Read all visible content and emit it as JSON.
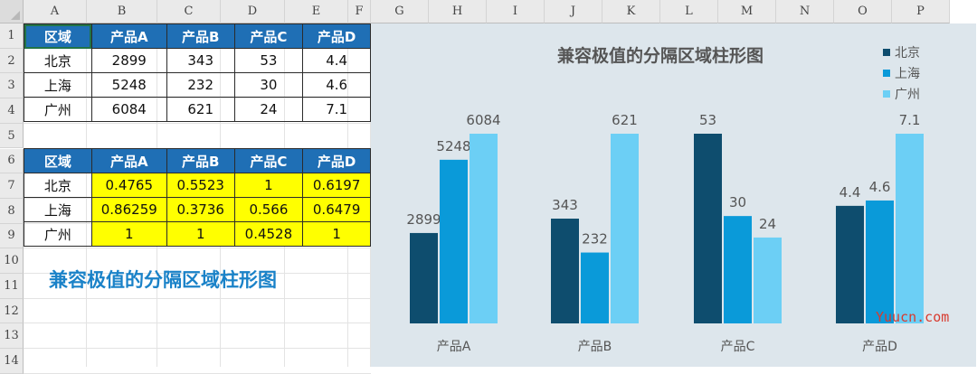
{
  "columns": [
    "A",
    "B",
    "C",
    "D",
    "E",
    "F",
    "G",
    "H",
    "I",
    "J",
    "K",
    "L",
    "M",
    "N",
    "O",
    "P"
  ],
  "rows": [
    "1",
    "2",
    "3",
    "4",
    "5",
    "6",
    "7",
    "8",
    "9",
    "10",
    "11",
    "12",
    "13",
    "14"
  ],
  "table1": {
    "header": [
      "区域",
      "产品A",
      "产品B",
      "产品C",
      "产品D"
    ],
    "rows": [
      [
        "北京",
        "2899",
        "343",
        "53",
        "4.4"
      ],
      [
        "上海",
        "5248",
        "232",
        "30",
        "4.6"
      ],
      [
        "广州",
        "6084",
        "621",
        "24",
        "7.1"
      ]
    ]
  },
  "table2": {
    "header": [
      "区域",
      "产品A",
      "产品B",
      "产品C",
      "产品D"
    ],
    "rows": [
      [
        "北京",
        "0.4765",
        "0.5523",
        "1",
        "0.6197"
      ],
      [
        "上海",
        "0.86259",
        "0.3736",
        "0.566",
        "0.6479"
      ],
      [
        "广州",
        "1",
        "1",
        "0.4528",
        "1"
      ]
    ]
  },
  "sheet_title": "兼容极值的分隔区域柱形图",
  "watermark": "Yuucn.com",
  "colors": {
    "header_blue": "#1f6fb5",
    "highlight_yellow": "#ffff00",
    "title_blue": "#1a82c8"
  },
  "chart_data": {
    "type": "bar",
    "title": "兼容极值的分隔区域柱形图",
    "categories": [
      "产品A",
      "产品B",
      "产品C",
      "产品D"
    ],
    "series": [
      {
        "name": "北京",
        "color": "#0e4d6e",
        "labels": [
          "2899",
          "343",
          "53",
          "4.4"
        ],
        "values": [
          0.4765,
          0.5523,
          1,
          0.6197
        ]
      },
      {
        "name": "上海",
        "color": "#0a9ad9",
        "labels": [
          "5248",
          "232",
          "30",
          "4.6"
        ],
        "values": [
          0.86259,
          0.3736,
          0.566,
          0.6479
        ]
      },
      {
        "name": "广州",
        "color": "#6ccff5",
        "labels": [
          "6084",
          "621",
          "24",
          "7.1"
        ],
        "values": [
          1,
          1,
          0.4528,
          1
        ]
      }
    ],
    "ylim": [
      0,
      1
    ],
    "legend": "top-right",
    "grid": false
  }
}
